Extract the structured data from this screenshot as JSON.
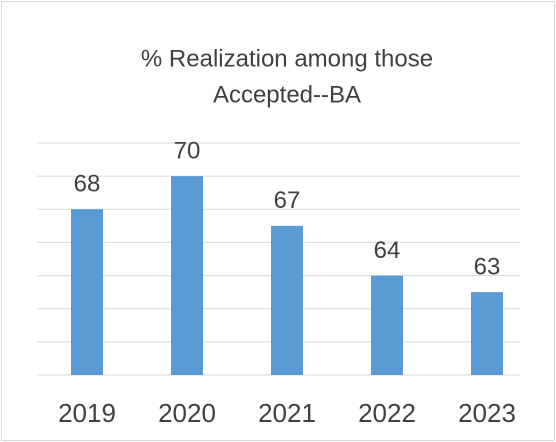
{
  "chart_data": {
    "type": "bar",
    "title": [
      "% Realization among those",
      "Accepted--BA"
    ],
    "categories": [
      "2019",
      "2020",
      "2021",
      "2022",
      "2023"
    ],
    "values": [
      68,
      70,
      67,
      64,
      63
    ],
    "color": "#5b9bd5",
    "ylim": [
      58,
      72
    ],
    "yticks": [
      58,
      60,
      62,
      64,
      66,
      68,
      70,
      72
    ],
    "grid": true,
    "ytick_labels": false,
    "data_labels": true
  }
}
